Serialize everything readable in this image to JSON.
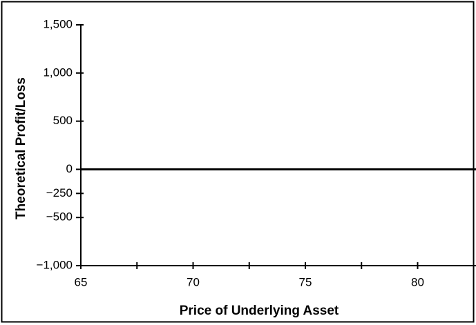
{
  "chart_data": {
    "type": "line",
    "x_label": "Price of Underlying Asset",
    "y_label": "Theoretical Profit/Loss",
    "xlim": [
      65,
      82.6
    ],
    "xticks": [
      65,
      70,
      75,
      80
    ],
    "xminor_ticks": [
      67.5,
      72.5,
      77.5
    ],
    "ylim": [
      -1000,
      1500
    ],
    "yticks": [
      {
        "value": 1500,
        "label": "1,500"
      },
      {
        "value": 1000,
        "label": "1,000"
      },
      500,
      0,
      {
        "value": -250,
        "label": "−250"
      },
      {
        "value": -500,
        "label": "−500"
      },
      {
        "value": -1000,
        "label": "−1,000"
      }
    ],
    "zero_line": 0,
    "color": "#000000"
  }
}
